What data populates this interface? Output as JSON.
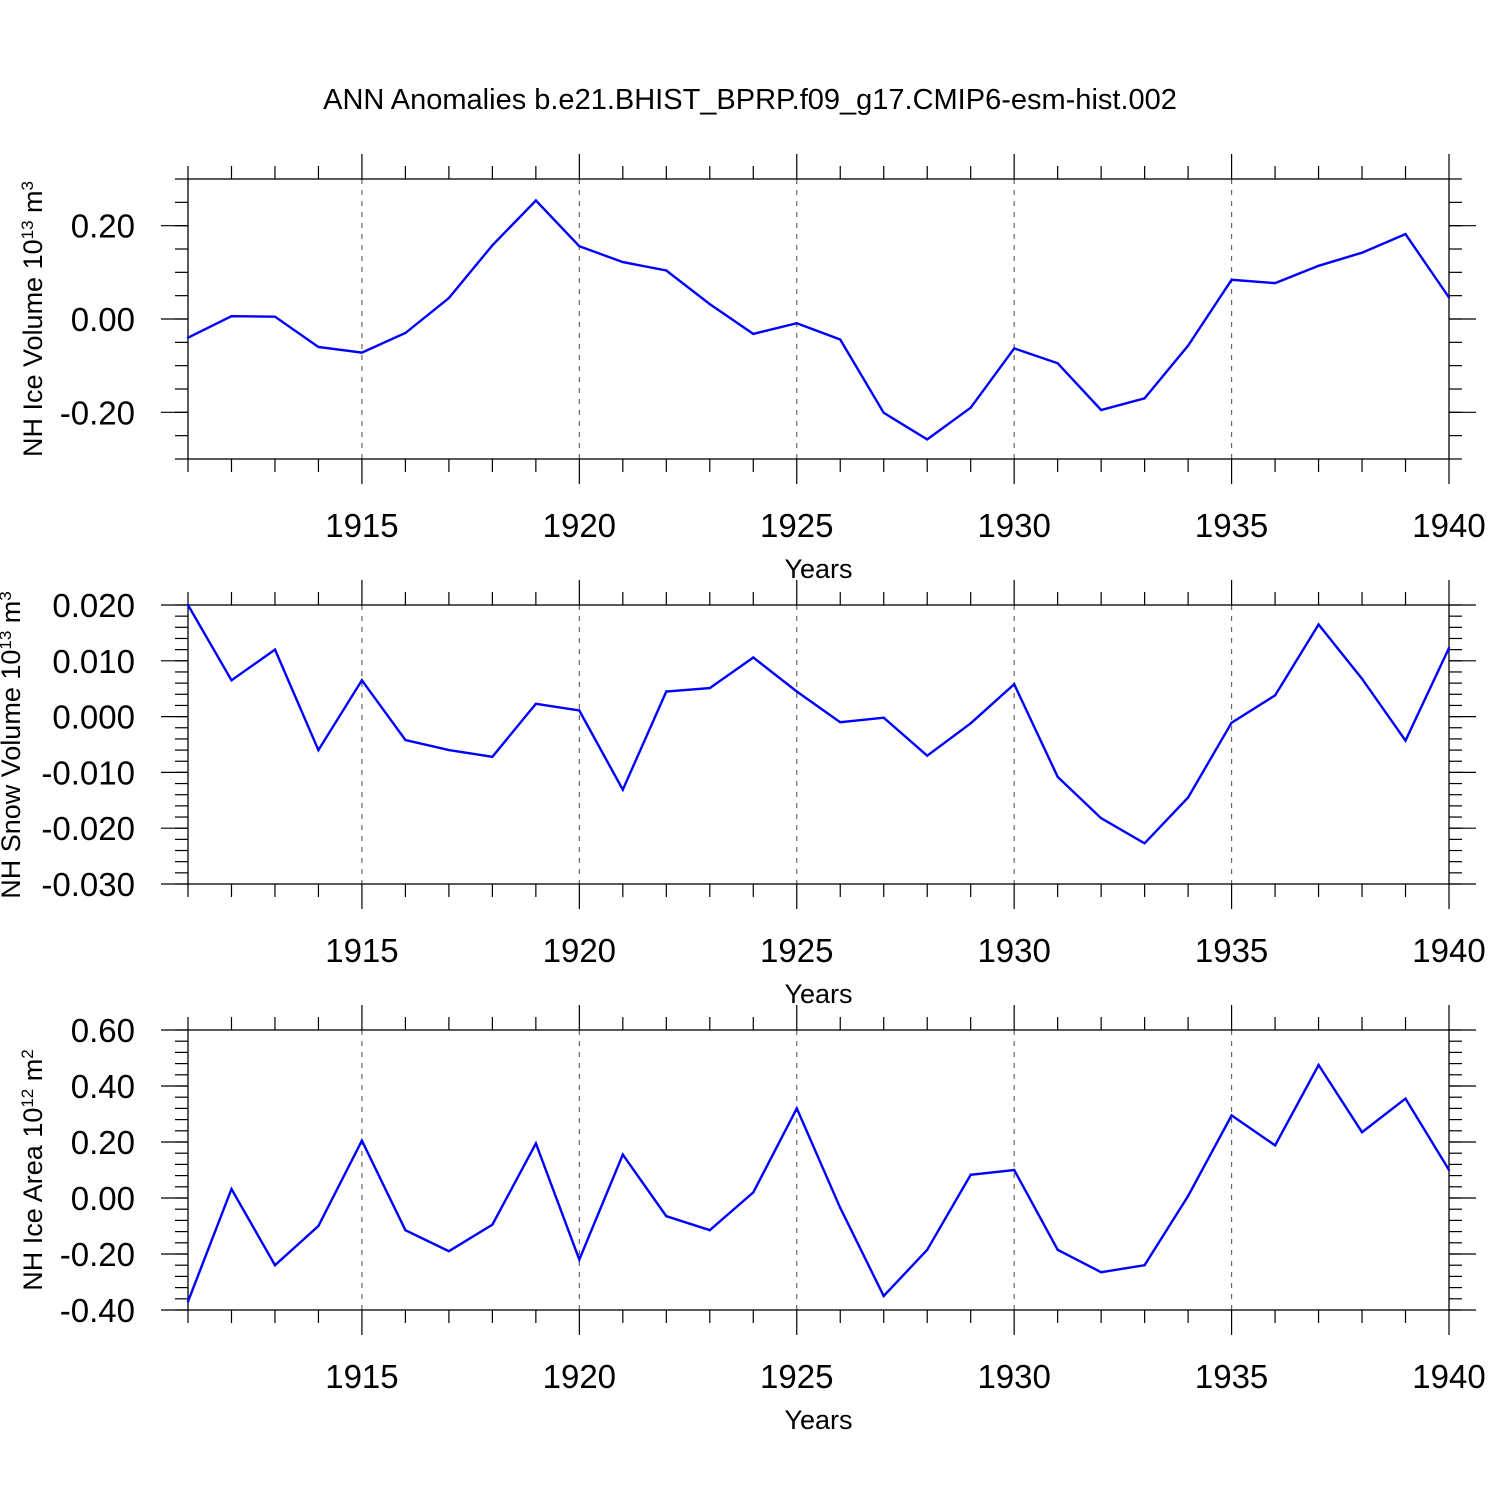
{
  "title": "ANN Anomalies b.e21.BHIST_BPRP.f09_g17.CMIP6-esm-hist.002",
  "colors": {
    "series": "#0000ff",
    "axes": "#000000",
    "grid": "#666666"
  },
  "chart_data": [
    {
      "type": "line",
      "name": "nh-ice-volume",
      "ylabel": {
        "text": "NH Ice Volume 10",
        "sup": "13",
        "unit": " m",
        "unit_sup": "3"
      },
      "xlabel": "Years",
      "xlim": [
        1911,
        1940
      ],
      "ylim": [
        -0.3,
        0.3
      ],
      "yticks": [
        -0.2,
        0.0,
        0.2
      ],
      "ytick_labels": [
        "-0.20",
        "0.00",
        "0.20"
      ],
      "yminor_step": 0.05,
      "xticks": [
        1915,
        1920,
        1925,
        1930,
        1935,
        1940
      ],
      "xtick_labels": [
        "1915",
        "1920",
        "1925",
        "1930",
        "1935",
        "1940"
      ],
      "grid": "vertical-dashed",
      "x": [
        1911,
        1912,
        1913,
        1914,
        1915,
        1916,
        1917,
        1918,
        1919,
        1920,
        1921,
        1922,
        1923,
        1924,
        1925,
        1926,
        1927,
        1928,
        1929,
        1930,
        1931,
        1932,
        1933,
        1934,
        1935,
        1936,
        1937,
        1938,
        1939,
        1940
      ],
      "y": [
        -0.04,
        0.006,
        0.005,
        -0.06,
        -0.072,
        -0.03,
        0.045,
        0.158,
        0.254,
        0.156,
        0.122,
        0.104,
        0.032,
        -0.032,
        -0.009,
        -0.044,
        -0.201,
        -0.258,
        -0.19,
        -0.063,
        -0.095,
        -0.195,
        -0.17,
        -0.057,
        0.084,
        0.077,
        0.114,
        0.142,
        0.182,
        0.046
      ]
    },
    {
      "type": "line",
      "name": "nh-snow-volume",
      "ylabel": {
        "text": "NH Snow Volume 10",
        "sup": "13",
        "unit": " m",
        "unit_sup": "3"
      },
      "xlabel": "Years",
      "xlim": [
        1911,
        1940
      ],
      "ylim": [
        -0.03,
        0.02
      ],
      "yticks": [
        -0.03,
        -0.02,
        -0.01,
        0.0,
        0.01,
        0.02
      ],
      "ytick_labels": [
        "-0.030",
        "-0.020",
        "-0.010",
        "0.000",
        "0.010",
        "0.020"
      ],
      "yminor_step": 0.002,
      "xticks": [
        1915,
        1920,
        1925,
        1930,
        1935,
        1940
      ],
      "xtick_labels": [
        "1915",
        "1920",
        "1925",
        "1930",
        "1935",
        "1940"
      ],
      "grid": "vertical-dashed",
      "x": [
        1911,
        1912,
        1913,
        1914,
        1915,
        1916,
        1917,
        1918,
        1919,
        1920,
        1921,
        1922,
        1923,
        1924,
        1925,
        1926,
        1927,
        1928,
        1929,
        1930,
        1931,
        1932,
        1933,
        1934,
        1935,
        1936,
        1937,
        1938,
        1939,
        1940
      ],
      "y": [
        0.02,
        0.0065,
        0.012,
        -0.006,
        0.0065,
        -0.0042,
        -0.006,
        -0.0072,
        0.0023,
        0.0011,
        -0.0131,
        0.0045,
        0.0051,
        0.0106,
        0.0045,
        -0.001,
        -0.0002,
        -0.007,
        -0.0012,
        0.0058,
        -0.0108,
        -0.0182,
        -0.0227,
        -0.0145,
        -0.0011,
        0.0038,
        0.0165,
        0.0068,
        -0.0043,
        0.0123
      ]
    },
    {
      "type": "line",
      "name": "nh-ice-area",
      "ylabel": {
        "text": "NH Ice Area 10",
        "sup": "12",
        "unit": " m",
        "unit_sup": "2"
      },
      "xlabel": "Years",
      "xlim": [
        1911,
        1940
      ],
      "ylim": [
        -0.4,
        0.6
      ],
      "yticks": [
        -0.4,
        -0.2,
        0.0,
        0.2,
        0.4,
        0.6
      ],
      "ytick_labels": [
        "-0.40",
        "-0.20",
        "0.00",
        "0.20",
        "0.40",
        "0.60"
      ],
      "yminor_step": 0.04,
      "xticks": [
        1915,
        1920,
        1925,
        1930,
        1935,
        1940
      ],
      "xtick_labels": [
        "1915",
        "1920",
        "1925",
        "1930",
        "1935",
        "1940"
      ],
      "grid": "vertical-dashed",
      "x": [
        1911,
        1912,
        1913,
        1914,
        1915,
        1916,
        1917,
        1918,
        1919,
        1920,
        1921,
        1922,
        1923,
        1924,
        1925,
        1926,
        1927,
        1928,
        1929,
        1930,
        1931,
        1932,
        1933,
        1934,
        1935,
        1936,
        1937,
        1938,
        1939,
        1940
      ],
      "y": [
        -0.37,
        0.032,
        -0.24,
        -0.1,
        0.205,
        -0.115,
        -0.19,
        -0.095,
        0.195,
        -0.22,
        0.155,
        -0.065,
        -0.115,
        0.02,
        0.32,
        -0.035,
        -0.35,
        -0.185,
        0.083,
        0.1,
        -0.185,
        -0.265,
        -0.24,
        0.007,
        0.295,
        0.188,
        0.475,
        0.235,
        0.355,
        0.1
      ]
    }
  ]
}
